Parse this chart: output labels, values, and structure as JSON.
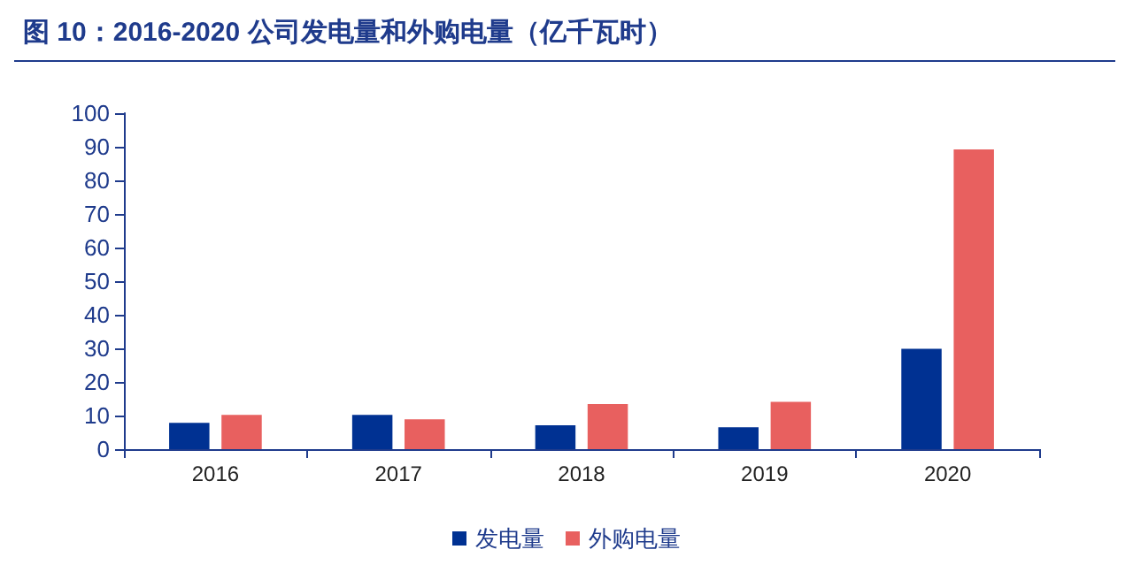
{
  "chart_data": {
    "type": "bar",
    "title": "图 10：2016-2020 公司发电量和外购电量（亿千瓦时）",
    "categories": [
      "2016",
      "2017",
      "2018",
      "2019",
      "2020"
    ],
    "series": [
      {
        "name": "发电量",
        "color": "#003192",
        "values": [
          7.8,
          10.2,
          7.1,
          6.5,
          29.9
        ]
      },
      {
        "name": "外购电量",
        "color": "#e8605f",
        "values": [
          10.2,
          8.9,
          13.4,
          14.1,
          89.2
        ]
      }
    ],
    "ylim": [
      0,
      100
    ],
    "yticks": [
      0,
      10,
      20,
      30,
      40,
      50,
      60,
      70,
      80,
      90,
      100
    ],
    "grid": false,
    "legend": "bottom"
  }
}
